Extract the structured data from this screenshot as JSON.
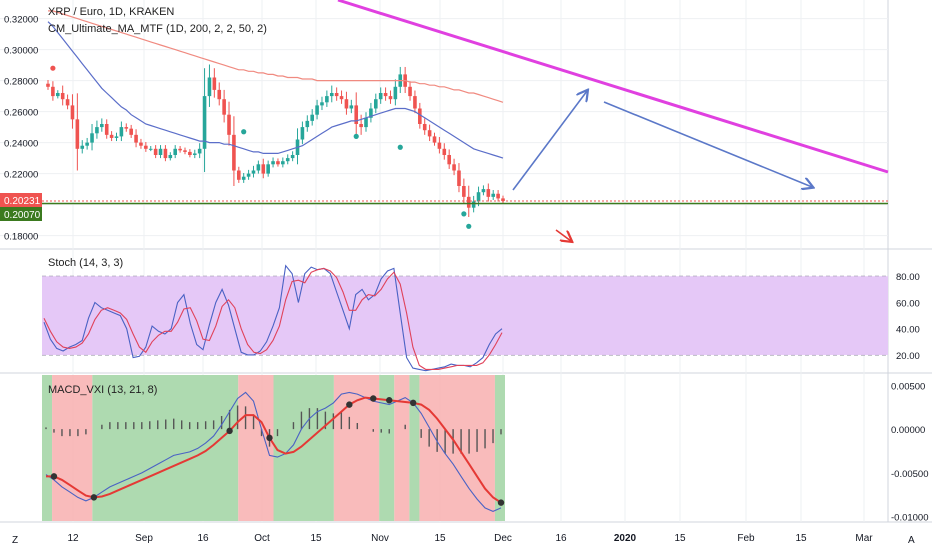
{
  "symbol": {
    "title": "XRP / Euro, 1D, KRAKEN",
    "indicator": "CM_Ultimate_MA_MTF (1D, 200, 2, 2, 50, 2)"
  },
  "stoch": {
    "label": "Stoch (14, 3, 3)"
  },
  "macd": {
    "label": "MACD_VXI (13, 21, 8)"
  },
  "price_tags": {
    "last": "0.20231",
    "level": "0.20070"
  },
  "colors": {
    "up": "#26a69a",
    "down": "#ef5350",
    "ma_fast": "#5b6ec9",
    "ma_slow": "#f08a80",
    "trend": "#e040e0",
    "arrow": "#5b78c8",
    "stoch_fill": "#e5c8f7"
  },
  "chart_data": [
    {
      "type": "candlestick",
      "title": "XRP / Euro, 1D, KRAKEN",
      "y_ticks": [
        "0.32000",
        "0.30000",
        "0.28000",
        "0.26000",
        "0.24000",
        "0.22000",
        "0.20000",
        "0.18000"
      ],
      "ylim": [
        0.172,
        0.332
      ],
      "x_ticks": [
        "12",
        "Sep",
        "16",
        "Oct",
        "15",
        "Nov",
        "15",
        "Dec",
        "16",
        "2020",
        "15",
        "Feb",
        "15",
        "Mar"
      ],
      "closes": [
        0.276,
        0.27,
        0.272,
        0.268,
        0.264,
        0.255,
        0.236,
        0.238,
        0.24,
        0.246,
        0.25,
        0.252,
        0.245,
        0.243,
        0.244,
        0.25,
        0.249,
        0.245,
        0.24,
        0.238,
        0.236,
        0.236,
        0.232,
        0.236,
        0.23,
        0.232,
        0.236,
        0.235,
        0.234,
        0.232,
        0.233,
        0.236,
        0.27,
        0.282,
        0.274,
        0.268,
        0.258,
        0.245,
        0.222,
        0.216,
        0.218,
        0.22,
        0.222,
        0.226,
        0.22,
        0.226,
        0.228,
        0.226,
        0.228,
        0.23,
        0.232,
        0.242,
        0.25,
        0.254,
        0.258,
        0.264,
        0.266,
        0.27,
        0.272,
        0.27,
        0.268,
        0.262,
        0.264,
        0.252,
        0.25,
        0.256,
        0.262,
        0.268,
        0.272,
        0.27,
        0.268,
        0.276,
        0.284,
        0.276,
        0.27,
        0.262,
        0.252,
        0.248,
        0.244,
        0.24,
        0.236,
        0.232,
        0.226,
        0.222,
        0.212,
        0.205,
        0.198,
        0.202,
        0.208,
        0.21,
        0.205,
        0.207,
        0.204,
        0.2023
      ],
      "level_line": 0.2007,
      "series": [
        {
          "name": "MA fast",
          "values": [
            0.318,
            0.315,
            0.311,
            0.307,
            0.303,
            0.299,
            0.295,
            0.291,
            0.287,
            0.283,
            0.279,
            0.275,
            0.272,
            0.269,
            0.266,
            0.263,
            0.261,
            0.258,
            0.256,
            0.254,
            0.252,
            0.251,
            0.25,
            0.249,
            0.248,
            0.247,
            0.246,
            0.245,
            0.244,
            0.243,
            0.242,
            0.241,
            0.241,
            0.24,
            0.24,
            0.24,
            0.239,
            0.239,
            0.238,
            0.237,
            0.236,
            0.235,
            0.234,
            0.234,
            0.233,
            0.233,
            0.233,
            0.233,
            0.234,
            0.235,
            0.236,
            0.237,
            0.238,
            0.24,
            0.242,
            0.244,
            0.246,
            0.248,
            0.25,
            0.251,
            0.252,
            0.253,
            0.254,
            0.254,
            0.255,
            0.256,
            0.257,
            0.258,
            0.259,
            0.26,
            0.261,
            0.262,
            0.262,
            0.262,
            0.261,
            0.26,
            0.258,
            0.256,
            0.254,
            0.252,
            0.25,
            0.248,
            0.246,
            0.244,
            0.242,
            0.24,
            0.238,
            0.236,
            0.235,
            0.234,
            0.233,
            0.232,
            0.231,
            0.23
          ]
        },
        {
          "name": "MA slow",
          "values": [
            0.325,
            0.325,
            0.324,
            0.323,
            0.322,
            0.321,
            0.32,
            0.319,
            0.318,
            0.317,
            0.316,
            0.315,
            0.314,
            0.313,
            0.312,
            0.311,
            0.31,
            0.309,
            0.308,
            0.307,
            0.306,
            0.305,
            0.304,
            0.303,
            0.302,
            0.301,
            0.3,
            0.299,
            0.298,
            0.297,
            0.296,
            0.295,
            0.294,
            0.293,
            0.292,
            0.291,
            0.29,
            0.289,
            0.288,
            0.287,
            0.287,
            0.286,
            0.286,
            0.285,
            0.285,
            0.284,
            0.284,
            0.283,
            0.283,
            0.282,
            0.282,
            0.282,
            0.281,
            0.281,
            0.281,
            0.28,
            0.28,
            0.28,
            0.28,
            0.28,
            0.28,
            0.28,
            0.28,
            0.28,
            0.28,
            0.28,
            0.28,
            0.28,
            0.28,
            0.28,
            0.28,
            0.28,
            0.28,
            0.28,
            0.279,
            0.279,
            0.278,
            0.278,
            0.277,
            0.277,
            0.276,
            0.276,
            0.275,
            0.274,
            0.274,
            0.273,
            0.272,
            0.272,
            0.271,
            0.27,
            0.269,
            0.268,
            0.267,
            0.266
          ]
        }
      ]
    },
    {
      "type": "line",
      "title": "Stoch (14, 3, 3)",
      "y_ticks": [
        "80.00",
        "60.00",
        "40.00",
        "20.00"
      ],
      "ylim": [
        7,
        100
      ],
      "band": [
        20,
        80
      ],
      "series": [
        {
          "name": "%K",
          "values": [
            45,
            32,
            25,
            23,
            26,
            28,
            31,
            48,
            60,
            56,
            54,
            52,
            50,
            40,
            18,
            19,
            26,
            42,
            38,
            36,
            40,
            60,
            66,
            44,
            28,
            24,
            43,
            60,
            70,
            58,
            40,
            22,
            20,
            20,
            23,
            30,
            42,
            56,
            88,
            82,
            60,
            82,
            87,
            85,
            86,
            82,
            68,
            54,
            40,
            66,
            70,
            62,
            66,
            78,
            84,
            86,
            52,
            18,
            10,
            9,
            8,
            9,
            10,
            11,
            13,
            12,
            12,
            11,
            14,
            18,
            28,
            36,
            40
          ]
        },
        {
          "name": "%D",
          "values": [
            48,
            38,
            30,
            26,
            25,
            26,
            29,
            36,
            47,
            54,
            56,
            54,
            52,
            47,
            36,
            26,
            22,
            30,
            35,
            38,
            38,
            45,
            55,
            56,
            46,
            32,
            31,
            42,
            57,
            62,
            56,
            40,
            28,
            22,
            21,
            24,
            31,
            42,
            62,
            76,
            77,
            75,
            83,
            85,
            86,
            84,
            79,
            68,
            54,
            54,
            62,
            66,
            65,
            70,
            78,
            83,
            74,
            52,
            26,
            12,
            9,
            9,
            9,
            10,
            11,
            12,
            12,
            12,
            12,
            14,
            20,
            28,
            37
          ]
        }
      ]
    },
    {
      "type": "line",
      "title": "MACD_VXI (13, 21, 8)",
      "y_ticks": [
        "0.00500",
        "0.00000",
        "-0.00500",
        "-0.01000"
      ],
      "ylim": [
        -0.0105,
        0.0063
      ],
      "series": [
        {
          "name": "MACD",
          "values": [
            -0.0052,
            -0.0058,
            -0.0066,
            -0.0072,
            -0.0078,
            -0.0082,
            -0.0078,
            -0.0072,
            -0.0066,
            -0.0062,
            -0.0058,
            -0.0054,
            -0.005,
            -0.0045,
            -0.004,
            -0.0035,
            -0.003,
            -0.0028,
            -0.0026,
            -0.0022,
            -0.0016,
            -0.0008,
            0.0005,
            0.002,
            0.0035,
            0.0042,
            0.0032,
            0.0,
            -0.003,
            -0.0032,
            -0.0028,
            -0.0018,
            0.0,
            0.0012,
            0.002,
            0.0024,
            0.003,
            0.004,
            0.0042,
            0.004,
            0.0036,
            0.0032,
            0.003,
            0.0028,
            0.0032,
            0.0036,
            0.003,
            0.0018,
            0.0002,
            -0.0014,
            -0.0028,
            -0.004,
            -0.0054,
            -0.0068,
            -0.008,
            -0.009,
            -0.0094,
            -0.009
          ]
        },
        {
          "name": "Signal",
          "values": [
            -0.0054,
            -0.0054,
            -0.0058,
            -0.0064,
            -0.007,
            -0.0076,
            -0.0078,
            -0.0077,
            -0.0074,
            -0.007,
            -0.0066,
            -0.0062,
            -0.0058,
            -0.0054,
            -0.005,
            -0.0046,
            -0.0042,
            -0.0038,
            -0.0034,
            -0.003,
            -0.0025,
            -0.0018,
            -0.001,
            -0.0002,
            0.0008,
            0.0016,
            0.0016,
            0.0008,
            -0.001,
            -0.0024,
            -0.0028,
            -0.0026,
            -0.002,
            -0.0012,
            -0.0004,
            0.0004,
            0.0012,
            0.002,
            0.0028,
            0.0033,
            0.0036,
            0.0035,
            0.0034,
            0.0033,
            0.0032,
            0.0031,
            0.003,
            0.0028,
            0.0022,
            0.0012,
            0.0,
            -0.0012,
            -0.0026,
            -0.004,
            -0.0054,
            -0.0068,
            -0.0078,
            -0.0084
          ]
        },
        {
          "name": "Histogram",
          "values": [
            0.0002,
            -0.0004,
            -0.0008,
            -0.0008,
            -0.0008,
            -0.0006,
            0.0,
            0.0005,
            0.0008,
            0.0008,
            0.0008,
            0.0008,
            0.0008,
            0.0009,
            0.001,
            0.0011,
            0.0012,
            0.001,
            0.0008,
            0.0008,
            0.0009,
            0.001,
            0.0015,
            0.0022,
            0.0027,
            0.0026,
            0.0016,
            -0.0008,
            -0.002,
            -0.0008,
            0.0,
            0.0008,
            0.002,
            0.0024,
            0.0024,
            0.002,
            0.0018,
            0.002,
            0.0014,
            0.0007,
            0.0,
            -0.0003,
            -0.0004,
            -0.0005,
            0.0,
            0.0005,
            0.0,
            -0.001,
            -0.002,
            -0.0026,
            -0.0028,
            -0.0028,
            -0.0028,
            -0.0028,
            -0.0026,
            -0.0022,
            -0.0016,
            -0.0006
          ]
        }
      ],
      "bands": [
        {
          "color": "green",
          "from": 0,
          "to": 2
        },
        {
          "color": "red",
          "from": 2,
          "to": 10
        },
        {
          "color": "green",
          "from": 10,
          "to": 39
        },
        {
          "color": "red",
          "from": 39,
          "to": 46
        },
        {
          "color": "green",
          "from": 46,
          "to": 58
        },
        {
          "color": "red",
          "from": 58,
          "to": 67
        },
        {
          "color": "green",
          "from": 67,
          "to": 70
        },
        {
          "color": "red",
          "from": 70,
          "to": 73
        },
        {
          "color": "green",
          "from": 73,
          "to": 75
        },
        {
          "color": "red",
          "from": 75,
          "to": 90
        },
        {
          "color": "green",
          "from": 90,
          "to": 92
        }
      ]
    }
  ]
}
